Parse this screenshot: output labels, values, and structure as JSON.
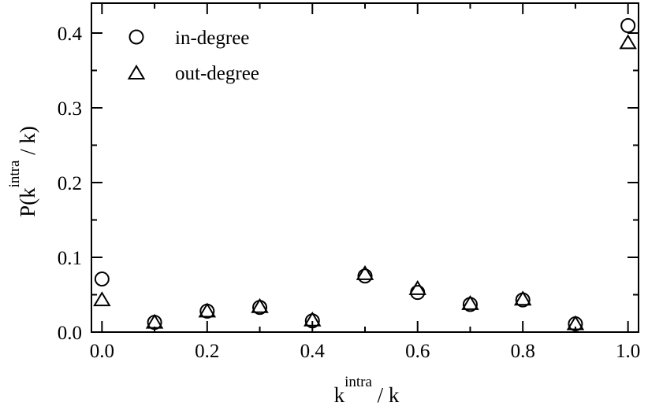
{
  "chart_data": {
    "type": "scatter",
    "title": "",
    "xlabel": {
      "base": "k",
      "superscript": "intra",
      "suffix": " / k"
    },
    "ylabel": {
      "prefix": "P(k",
      "superscript": "intra",
      "suffix": " / k)"
    },
    "xlim": [
      -0.02,
      1.02
    ],
    "ylim": [
      0.0,
      0.44
    ],
    "xticks": [
      0.0,
      0.2,
      0.4,
      0.6,
      0.8,
      1.0
    ],
    "xtick_labels": [
      "0.0",
      "0.2",
      "0.4",
      "0.6",
      "0.8",
      "1.0"
    ],
    "yticks": [
      0.0,
      0.1,
      0.2,
      0.3,
      0.4
    ],
    "ytick_labels": [
      "0.0",
      "0.1",
      "0.2",
      "0.3",
      "0.4"
    ],
    "x_minor_step": 0.1,
    "y_minor_step": 0.05,
    "grid": false,
    "legend_position": "top-left",
    "series": [
      {
        "name": "in-degree",
        "marker": "circle",
        "x": [
          0.0,
          0.1,
          0.2,
          0.3,
          0.4,
          0.5,
          0.6,
          0.7,
          0.8,
          0.9,
          1.0
        ],
        "y": [
          0.071,
          0.013,
          0.028,
          0.033,
          0.015,
          0.075,
          0.053,
          0.037,
          0.043,
          0.011,
          0.41
        ]
      },
      {
        "name": "out-degree",
        "marker": "triangle",
        "x": [
          0.0,
          0.1,
          0.2,
          0.3,
          0.4,
          0.5,
          0.6,
          0.7,
          0.8,
          0.9,
          1.0
        ],
        "y": [
          0.043,
          0.013,
          0.028,
          0.034,
          0.016,
          0.078,
          0.058,
          0.038,
          0.044,
          0.011,
          0.387
        ]
      }
    ]
  }
}
